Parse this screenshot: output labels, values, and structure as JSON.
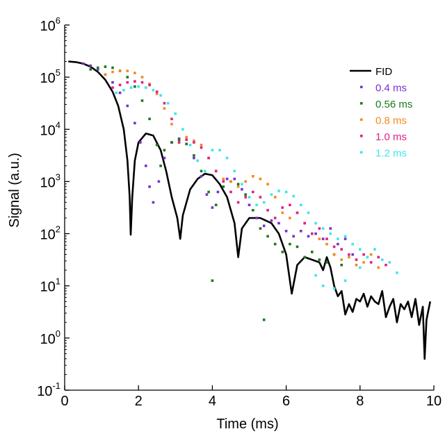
{
  "chart_data": {
    "type": "scatter",
    "title": "",
    "xlabel": "Time (ms)",
    "ylabel": "Signal (a.u.)",
    "xlim": [
      0,
      10
    ],
    "ylim_log10": [
      -1,
      6
    ],
    "y_scale": "log",
    "grid": false,
    "legend_position": "top-right",
    "x_ticks": [
      {
        "value": 0,
        "label": "0"
      },
      {
        "value": 2,
        "label": "2"
      },
      {
        "value": 4,
        "label": "4"
      },
      {
        "value": 6,
        "label": "6"
      },
      {
        "value": 8,
        "label": "8"
      },
      {
        "value": 10,
        "label": "10"
      }
    ],
    "y_ticks": [
      {
        "exponent": 6,
        "base": "10",
        "exp": "6"
      },
      {
        "exponent": 5,
        "base": "10",
        "exp": "5"
      },
      {
        "exponent": 4,
        "base": "10",
        "exp": "4"
      },
      {
        "exponent": 3,
        "base": "10",
        "exp": "3"
      },
      {
        "exponent": 2,
        "base": "10",
        "exp": "2"
      },
      {
        "exponent": 1,
        "base": "10",
        "exp": "1"
      },
      {
        "exponent": 0,
        "base": "10",
        "exp": "0"
      },
      {
        "exponent": -1,
        "base": "10",
        "exp": "-1"
      }
    ],
    "series": [
      {
        "name": "FID",
        "label": "FID",
        "style": "line",
        "color": "#000000",
        "log10_y": [
          [
            0.1,
            5.3
          ],
          [
            0.3,
            5.29
          ],
          [
            0.5,
            5.26
          ],
          [
            0.7,
            5.2
          ],
          [
            0.9,
            5.1
          ],
          [
            1.1,
            4.95
          ],
          [
            1.3,
            4.72
          ],
          [
            1.45,
            4.45
          ],
          [
            1.6,
            4.0
          ],
          [
            1.7,
            3.4
          ],
          [
            1.76,
            2.7
          ],
          [
            1.79,
            1.98
          ],
          [
            1.83,
            2.7
          ],
          [
            1.9,
            3.4
          ],
          [
            2.0,
            3.75
          ],
          [
            2.2,
            3.92
          ],
          [
            2.4,
            3.88
          ],
          [
            2.6,
            3.6
          ],
          [
            2.75,
            3.2
          ],
          [
            2.9,
            2.7
          ],
          [
            3.05,
            2.3
          ],
          [
            3.13,
            1.9
          ],
          [
            3.2,
            2.35
          ],
          [
            3.4,
            2.85
          ],
          [
            3.6,
            3.05
          ],
          [
            3.8,
            3.15
          ],
          [
            4.0,
            3.12
          ],
          [
            4.2,
            2.95
          ],
          [
            4.4,
            2.7
          ],
          [
            4.6,
            2.2
          ],
          [
            4.7,
            1.55
          ],
          [
            4.8,
            2.1
          ],
          [
            5.0,
            2.3
          ],
          [
            5.3,
            2.3
          ],
          [
            5.6,
            2.2
          ],
          [
            5.8,
            2.0
          ],
          [
            6.0,
            1.6
          ],
          [
            6.15,
            0.85
          ],
          [
            6.3,
            1.4
          ],
          [
            6.5,
            1.55
          ],
          [
            6.7,
            1.5
          ],
          [
            6.9,
            1.45
          ],
          [
            7.0,
            1.3
          ],
          [
            7.1,
            1.55
          ],
          [
            7.2,
            1.35
          ],
          [
            7.3,
            1.0
          ],
          [
            7.4,
            0.8
          ],
          [
            7.5,
            0.9
          ],
          [
            7.6,
            0.45
          ],
          [
            7.7,
            0.65
          ],
          [
            7.8,
            0.5
          ],
          [
            7.9,
            0.75
          ],
          [
            8.0,
            0.7
          ],
          [
            8.1,
            0.85
          ],
          [
            8.2,
            0.6
          ],
          [
            8.3,
            0.8
          ],
          [
            8.4,
            0.7
          ],
          [
            8.5,
            0.65
          ],
          [
            8.6,
            0.9
          ],
          [
            8.7,
            0.4
          ],
          [
            8.8,
            0.6
          ],
          [
            8.9,
            0.75
          ],
          [
            9.0,
            0.3
          ],
          [
            9.1,
            0.65
          ],
          [
            9.2,
            0.55
          ],
          [
            9.3,
            0.7
          ],
          [
            9.4,
            0.4
          ],
          [
            9.5,
            0.75
          ],
          [
            9.6,
            0.25
          ],
          [
            9.7,
            0.6
          ],
          [
            9.75,
            -0.4
          ],
          [
            9.8,
            0.35
          ],
          [
            9.9,
            0.7
          ]
        ]
      },
      {
        "name": "0.4 ms",
        "label": "0.4 ms",
        "style": "points",
        "color": "#7b2fd0",
        "log10_y": [
          [
            0.5,
            5.26
          ],
          [
            0.7,
            5.22
          ],
          [
            0.9,
            5.15
          ],
          [
            1.1,
            5.05
          ],
          [
            1.3,
            4.9
          ],
          [
            1.5,
            4.7
          ],
          [
            1.7,
            4.45
          ],
          [
            1.9,
            4.12
          ],
          [
            2.05,
            3.75
          ],
          [
            2.2,
            3.3
          ],
          [
            2.3,
            2.9
          ],
          [
            2.4,
            2.6
          ],
          [
            2.55,
            3.0
          ],
          [
            2.7,
            3.45
          ],
          [
            2.9,
            3.75
          ],
          [
            3.1,
            3.82
          ],
          [
            3.3,
            3.72
          ],
          [
            3.5,
            3.45
          ],
          [
            3.7,
            3.1
          ],
          [
            3.85,
            2.75
          ],
          [
            4.0,
            2.5
          ],
          [
            4.15,
            2.8
          ],
          [
            4.4,
            3.05
          ],
          [
            4.6,
            3.05
          ],
          [
            4.8,
            2.85
          ],
          [
            5.0,
            2.55
          ],
          [
            5.2,
            2.3
          ],
          [
            5.4,
            2.15
          ],
          [
            5.6,
            2.25
          ],
          [
            5.8,
            2.2
          ],
          [
            6.0,
            2.05
          ],
          [
            6.2,
            1.95
          ],
          [
            6.4,
            2.05
          ],
          [
            6.6,
            1.95
          ],
          [
            6.8,
            2.0
          ],
          [
            7.0,
            1.9
          ],
          [
            7.2,
            2.1
          ],
          [
            7.4,
            1.8
          ],
          [
            7.6,
            1.9
          ],
          [
            7.8,
            1.6
          ]
        ]
      },
      {
        "name": "0.56 ms",
        "label": "0.56 ms",
        "style": "points",
        "color": "#1a7a1a",
        "log10_y": [
          [
            0.7,
            5.15
          ],
          [
            0.9,
            5.18
          ],
          [
            1.1,
            5.2
          ],
          [
            1.3,
            5.18
          ],
          [
            1.5,
            5.12
          ],
          [
            1.7,
            5.0
          ],
          [
            1.9,
            4.82
          ],
          [
            2.1,
            4.55
          ],
          [
            2.3,
            4.2
          ],
          [
            2.5,
            3.7
          ],
          [
            2.6,
            3.3
          ],
          [
            2.7,
            3.6
          ],
          [
            2.9,
            3.75
          ],
          [
            3.1,
            3.8
          ],
          [
            3.3,
            3.72
          ],
          [
            3.5,
            3.5
          ],
          [
            3.7,
            3.2
          ],
          [
            3.9,
            2.8
          ],
          [
            4.1,
            2.55
          ],
          [
            4.3,
            2.9
          ],
          [
            4.5,
            3.0
          ],
          [
            4.7,
            2.95
          ],
          [
            4.9,
            2.75
          ],
          [
            5.1,
            2.45
          ],
          [
            5.3,
            2.1
          ],
          [
            5.5,
            1.95
          ],
          [
            5.7,
            1.8
          ],
          [
            5.9,
            1.65
          ],
          [
            6.1,
            1.8
          ],
          [
            6.3,
            1.75
          ],
          [
            6.5,
            1.55
          ],
          [
            6.7,
            1.65
          ],
          [
            6.9,
            1.5
          ],
          [
            7.1,
            1.45
          ],
          [
            7.3,
            1.6
          ],
          [
            7.5,
            1.4
          ],
          [
            4.0,
            1.1
          ],
          [
            5.4,
            0.35
          ]
        ]
      },
      {
        "name": "0.8 ms",
        "label": "0.8 ms",
        "style": "points",
        "color": "#f28a1f",
        "log10_y": [
          [
            1.1,
            5.05
          ],
          [
            1.3,
            5.1
          ],
          [
            1.5,
            5.12
          ],
          [
            1.7,
            5.12
          ],
          [
            1.9,
            5.08
          ],
          [
            2.1,
            5.0
          ],
          [
            2.3,
            4.87
          ],
          [
            2.5,
            4.68
          ],
          [
            2.7,
            4.4
          ],
          [
            2.9,
            4.1
          ],
          [
            3.1,
            3.75
          ],
          [
            3.3,
            3.85
          ],
          [
            3.5,
            3.78
          ],
          [
            3.7,
            3.7
          ],
          [
            3.9,
            3.45
          ],
          [
            4.1,
            3.2
          ],
          [
            4.3,
            3.05
          ],
          [
            4.5,
            3.0
          ],
          [
            4.7,
            2.9
          ],
          [
            4.9,
            3.0
          ],
          [
            5.1,
            3.1
          ],
          [
            5.3,
            3.05
          ],
          [
            5.5,
            2.95
          ],
          [
            5.7,
            2.7
          ],
          [
            5.9,
            2.4
          ],
          [
            6.1,
            2.3
          ],
          [
            6.3,
            2.4
          ],
          [
            6.5,
            2.2
          ],
          [
            6.7,
            2.0
          ],
          [
            6.9,
            1.9
          ],
          [
            7.1,
            1.8
          ],
          [
            7.3,
            1.6
          ],
          [
            7.5,
            1.5
          ],
          [
            7.7,
            1.55
          ],
          [
            7.9,
            1.4
          ],
          [
            8.1,
            1.45
          ],
          [
            8.3,
            1.6
          ],
          [
            8.5,
            1.35
          ]
        ]
      },
      {
        "name": "1.0 ms",
        "label": "1.0 ms",
        "style": "points",
        "color": "#e0208a",
        "log10_y": [
          [
            1.3,
            4.8
          ],
          [
            1.5,
            4.85
          ],
          [
            1.7,
            4.9
          ],
          [
            1.9,
            4.92
          ],
          [
            2.1,
            4.9
          ],
          [
            2.3,
            4.85
          ],
          [
            2.5,
            4.72
          ],
          [
            2.7,
            4.5
          ],
          [
            2.9,
            4.2
          ],
          [
            3.1,
            3.75
          ],
          [
            3.3,
            3.8
          ],
          [
            3.5,
            3.75
          ],
          [
            3.7,
            3.65
          ],
          [
            3.9,
            3.45
          ],
          [
            4.1,
            3.2
          ],
          [
            4.3,
            3.0
          ],
          [
            4.5,
            2.8
          ],
          [
            4.7,
            2.6
          ],
          [
            4.9,
            2.7
          ],
          [
            5.1,
            2.8
          ],
          [
            5.3,
            2.7
          ],
          [
            5.5,
            2.45
          ],
          [
            5.7,
            2.3
          ],
          [
            5.9,
            2.5
          ],
          [
            6.1,
            2.55
          ],
          [
            6.3,
            2.4
          ],
          [
            6.5,
            2.2
          ],
          [
            6.7,
            2.0
          ],
          [
            6.9,
            2.1
          ],
          [
            7.1,
            1.9
          ],
          [
            7.3,
            1.75
          ],
          [
            7.5,
            1.7
          ],
          [
            7.7,
            1.6
          ],
          [
            7.9,
            1.5
          ],
          [
            8.1,
            1.6
          ],
          [
            8.3,
            1.45
          ],
          [
            8.5,
            1.55
          ],
          [
            8.7,
            1.4
          ]
        ]
      },
      {
        "name": "1.2 ms",
        "label": "1.2 ms",
        "style": "points",
        "color": "#3fe6ea",
        "log10_y": [
          [
            1.4,
            4.7
          ],
          [
            1.6,
            4.75
          ],
          [
            1.8,
            4.8
          ],
          [
            2.0,
            4.82
          ],
          [
            2.2,
            4.8
          ],
          [
            2.4,
            4.75
          ],
          [
            2.6,
            4.65
          ],
          [
            2.8,
            4.5
          ],
          [
            3.0,
            4.3
          ],
          [
            3.2,
            4.0
          ],
          [
            3.4,
            3.7
          ],
          [
            3.6,
            3.4
          ],
          [
            3.8,
            3.2
          ],
          [
            4.0,
            3.6
          ],
          [
            4.2,
            3.6
          ],
          [
            4.4,
            3.45
          ],
          [
            4.6,
            3.2
          ],
          [
            4.8,
            2.95
          ],
          [
            5.0,
            2.7
          ],
          [
            5.2,
            2.55
          ],
          [
            5.4,
            2.6
          ],
          [
            5.6,
            2.75
          ],
          [
            5.8,
            2.82
          ],
          [
            6.0,
            2.8
          ],
          [
            6.2,
            2.72
          ],
          [
            6.4,
            2.55
          ],
          [
            6.6,
            2.4
          ],
          [
            6.8,
            2.2
          ],
          [
            7.0,
            2.1
          ],
          [
            7.2,
            2.0
          ],
          [
            7.4,
            1.9
          ],
          [
            7.6,
            1.95
          ],
          [
            7.8,
            1.8
          ],
          [
            8.0,
            1.7
          ],
          [
            8.2,
            1.55
          ],
          [
            8.4,
            1.7
          ],
          [
            8.6,
            1.5
          ],
          [
            8.8,
            1.45
          ],
          [
            9.0,
            1.25
          ],
          [
            6.8,
            1.2
          ],
          [
            7.0,
            1.0
          ],
          [
            7.3,
            0.95
          ],
          [
            7.6,
            1.1
          ],
          [
            8.0,
            1.35
          ]
        ]
      }
    ]
  }
}
